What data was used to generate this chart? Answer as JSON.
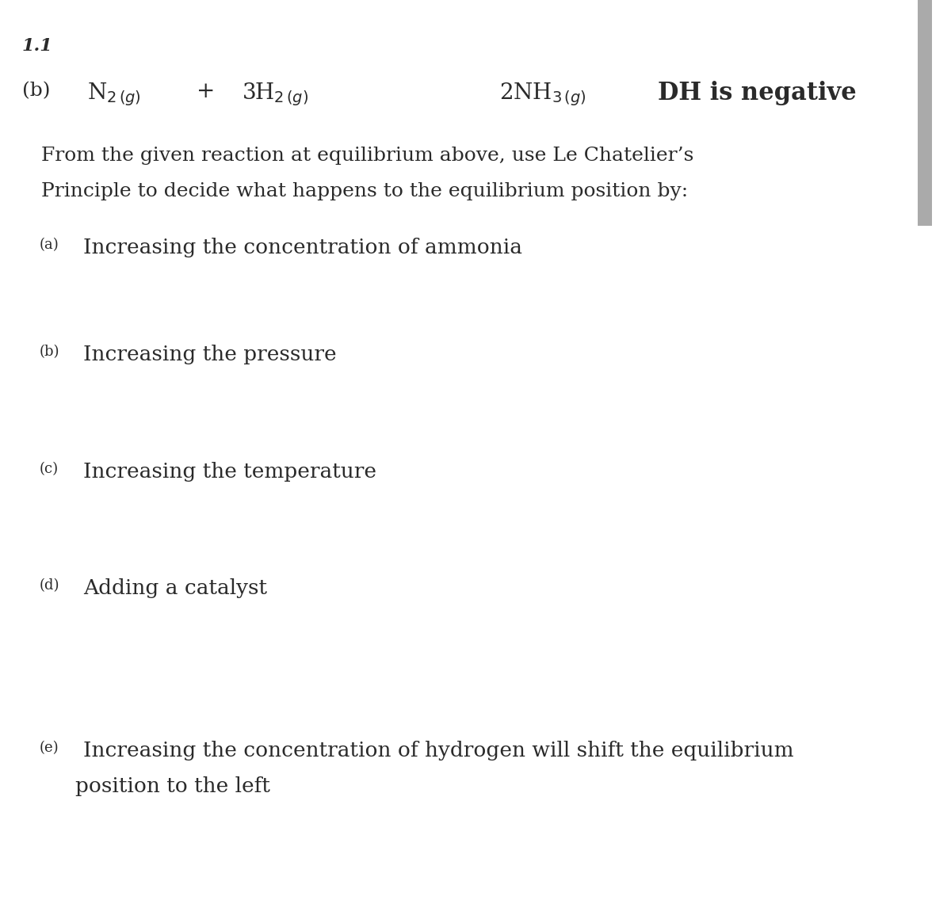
{
  "bg_color": "#ffffff",
  "text_color": "#2a2a2a",
  "right_bar_color": "#aaaaaa",
  "section_number": "1.1",
  "sub_label": "(b)",
  "reaction_N2": "N$_{2\\,(g)}$",
  "reaction_plus": "+",
  "reaction_H2": "3H$_{2\\,(g)}$",
  "reaction_NH3": "2NH$_{3\\,(g)}$",
  "reaction_dh": "DH is negative",
  "intro_line1": "From the given reaction at equilibrium above, use Le Chatelier’s",
  "intro_line2": "Principle to decide what happens to the equilibrium position by:",
  "items": [
    {
      "label": "(a)",
      "text": "Increasing the concentration of ammonia"
    },
    {
      "label": "(b)",
      "text": "Increasing the pressure"
    },
    {
      "label": "(c)",
      "text": "Increasing the temperature"
    },
    {
      "label": "(d)",
      "text": "Adding a catalyst"
    },
    {
      "label": "(e)",
      "text1": "Increasing the concentration of hydrogen will shift the equilibrium",
      "text2": "position to the left"
    }
  ],
  "figsize": [
    12.0,
    11.55
  ],
  "dpi": 100
}
